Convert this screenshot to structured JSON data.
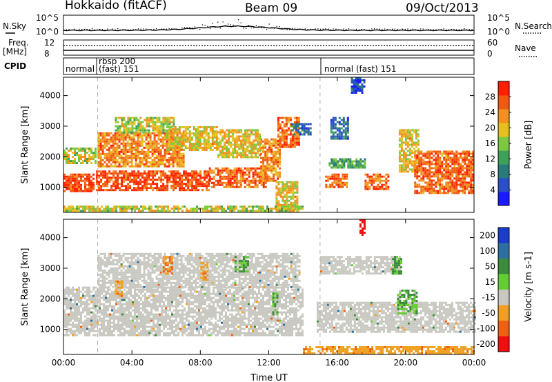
{
  "header": {
    "station": "Hokkaido (fitACF)",
    "beam": "Beam 09",
    "date": "09/Oct/2013"
  },
  "aux_panels": {
    "nsky": {
      "label": "N.Sky",
      "y_ticks": [
        "10^5",
        "10^0"
      ],
      "right_ticks": [
        "10^5",
        "10^0"
      ],
      "right_label": "N.Search"
    },
    "freq": {
      "label_line1": "Freq.",
      "label_line2": "[MHz]",
      "y_ticks": [
        "12",
        "8"
      ],
      "right_ticks": [
        "60",
        "0"
      ],
      "right_label": "Nave"
    },
    "cpid": {
      "label": "CPID",
      "segments": [
        {
          "text": "normal",
          "start_hour": 0
        },
        {
          "text": "rbsp 200",
          "start_hour": 2.0
        },
        {
          "text": "(fast) 151",
          "start_hour": 2.0
        },
        {
          "text": "normal (fast) 151",
          "start_hour": 15.0
        }
      ]
    }
  },
  "chart_data": [
    {
      "type": "heatmap",
      "title": "",
      "xlabel": "Time UT",
      "ylabel": "Slant Range [km]",
      "xlim": [
        0,
        24
      ],
      "ylim": [
        180,
        4600
      ],
      "x_ticks": [
        "00:00",
        "04:00",
        "08:00",
        "12:00",
        "16:00",
        "20:00",
        "00:00"
      ],
      "y_ticks": [
        1000,
        2000,
        3000,
        4000
      ],
      "colorbar": {
        "label": "Power [dB]",
        "ticks": [
          4,
          8,
          12,
          16,
          20,
          24,
          28
        ],
        "range": [
          0,
          32
        ]
      },
      "regions": [
        {
          "t0": 0.0,
          "t1": 1.8,
          "r0": 850,
          "r1": 1450,
          "level": 28
        },
        {
          "t0": 1.9,
          "t1": 8.5,
          "r0": 900,
          "r1": 1550,
          "level": 28
        },
        {
          "t0": 8.5,
          "t1": 11.8,
          "r0": 1000,
          "r1": 1650,
          "level": 26
        },
        {
          "t0": 11.5,
          "t1": 12.6,
          "r0": 1200,
          "r1": 2600,
          "level": 24
        },
        {
          "t0": 12.4,
          "t1": 13.7,
          "r0": 200,
          "r1": 1200,
          "level": 20
        },
        {
          "t0": 2.0,
          "t1": 7.0,
          "r0": 1700,
          "r1": 2800,
          "level": 24
        },
        {
          "t0": 3.0,
          "t1": 6.5,
          "r0": 2800,
          "r1": 3300,
          "level": 18
        },
        {
          "t0": 6.0,
          "t1": 9.0,
          "r0": 2200,
          "r1": 3000,
          "level": 20
        },
        {
          "t0": 9.0,
          "t1": 11.5,
          "r0": 2000,
          "r1": 2900,
          "level": 20
        },
        {
          "t0": 12.5,
          "t1": 13.8,
          "r0": 2300,
          "r1": 3300,
          "level": 26
        },
        {
          "t0": 13.3,
          "t1": 14.4,
          "r0": 2700,
          "r1": 3100,
          "level": 8
        },
        {
          "t0": 15.3,
          "t1": 16.6,
          "r0": 1000,
          "r1": 1450,
          "level": 26
        },
        {
          "t0": 15.5,
          "t1": 17.6,
          "r0": 1650,
          "r1": 1950,
          "level": 12
        },
        {
          "t0": 17.6,
          "t1": 19.0,
          "r0": 950,
          "r1": 1450,
          "level": 26
        },
        {
          "t0": 15.6,
          "t1": 16.6,
          "r0": 2600,
          "r1": 3300,
          "level": 8
        },
        {
          "t0": 16.8,
          "t1": 17.6,
          "r0": 4100,
          "r1": 4600,
          "level": 6
        },
        {
          "t0": 19.6,
          "t1": 20.8,
          "r0": 1500,
          "r1": 2900,
          "level": 20
        },
        {
          "t0": 20.5,
          "t1": 24.0,
          "r0": 800,
          "r1": 2200,
          "level": 26
        },
        {
          "t0": 0.0,
          "t1": 1.9,
          "r0": 1800,
          "r1": 2300,
          "level": 18
        },
        {
          "t0": 0.0,
          "t1": 14.0,
          "r0": 200,
          "r1": 400,
          "level": 18
        }
      ]
    },
    {
      "type": "heatmap",
      "title": "",
      "xlabel": "Time UT",
      "ylabel": "Slant Range [km]",
      "xlim": [
        0,
        24
      ],
      "ylim": [
        180,
        4600
      ],
      "x_ticks": [
        "00:00",
        "04:00",
        "08:00",
        "12:00",
        "16:00",
        "20:00",
        "00:00"
      ],
      "y_ticks": [
        1000,
        2000,
        3000,
        4000
      ],
      "colorbar": {
        "label": "Velocity [m s-1]",
        "ticks": [
          200,
          100,
          50,
          15,
          -15,
          -50,
          -100,
          -200
        ],
        "range": [
          -250,
          250
        ]
      },
      "regions": [
        {
          "t0": 0.0,
          "t1": 14.0,
          "r0": 800,
          "r1": 2400,
          "level": 0
        },
        {
          "t0": 2.0,
          "t1": 13.8,
          "r0": 2400,
          "r1": 3500,
          "level": 0
        },
        {
          "t0": 14.8,
          "t1": 24.0,
          "r0": 900,
          "r1": 1900,
          "level": 0
        },
        {
          "t0": 15.0,
          "t1": 19.6,
          "r0": 2800,
          "r1": 3400,
          "level": 0
        },
        {
          "t0": 5.8,
          "t1": 6.3,
          "r0": 2800,
          "r1": 3400,
          "level": -70
        },
        {
          "t0": 3.0,
          "t1": 3.4,
          "r0": 2100,
          "r1": 2600,
          "level": -60
        },
        {
          "t0": 8.0,
          "t1": 8.4,
          "r0": 2600,
          "r1": 3200,
          "level": -60
        },
        {
          "t0": 10.0,
          "t1": 10.8,
          "r0": 2900,
          "r1": 3400,
          "level": 30
        },
        {
          "t0": 12.2,
          "t1": 12.5,
          "r0": 1500,
          "r1": 2200,
          "level": 30
        },
        {
          "t0": 19.2,
          "t1": 19.8,
          "r0": 2800,
          "r1": 3400,
          "level": 30
        },
        {
          "t0": 19.5,
          "t1": 20.6,
          "r0": 1500,
          "r1": 2300,
          "level": 30
        },
        {
          "t0": 17.3,
          "t1": 17.6,
          "r0": 4100,
          "r1": 4600,
          "level": -200
        },
        {
          "t0": 14.0,
          "t1": 24.0,
          "r0": 200,
          "r1": 450,
          "level": -60
        }
      ]
    }
  ]
}
